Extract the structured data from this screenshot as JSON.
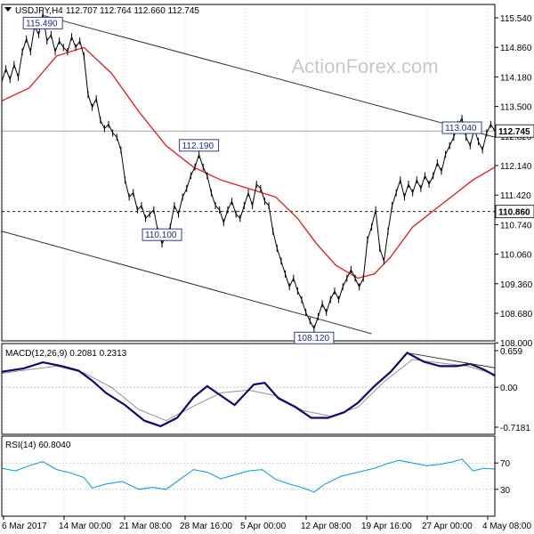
{
  "header": {
    "symbol": "USDJPY,H4",
    "ohlc": "112.707 112.764 112.660 112.745"
  },
  "watermark": "ActionForex.com",
  "colors": {
    "price": "#000000",
    "ma": "#e8191c",
    "macd": "#0a0a6e",
    "signal": "#909090",
    "rsi": "#0099dd",
    "trendline": "#333333",
    "grid": "#b0b0b0",
    "label_border": "#1a2a8a",
    "watermark": "#c8c8c8"
  },
  "chart_data": [
    {
      "type": "line",
      "title": "USDJPY,H4",
      "note": "price chart with moving average, channel lines and swing-point labels",
      "x_tick_labels": [
        "6 Mar 2017",
        "14 Mar 00:00",
        "21 Mar 08:00",
        "28 Mar 16:00",
        "5 Apr 00:00",
        "12 Apr 08:00",
        "19 Apr 16:00",
        "27 Apr 00:00",
        "4 May 08:00"
      ],
      "y_tick_labels": [
        "115.540",
        "114.860",
        "114.180",
        "113.500",
        "112.820",
        "112.140",
        "111.420",
        "110.740",
        "110.060",
        "109.360",
        "108.680",
        "108.000"
      ],
      "ylim": [
        108.0,
        115.54
      ],
      "price_series": [
        [
          0,
          113.9
        ],
        [
          1.5,
          114.2
        ],
        [
          3,
          113.95
        ],
        [
          4.5,
          114.3
        ],
        [
          6,
          114.0
        ],
        [
          7.5,
          114.6
        ],
        [
          9,
          114.9
        ],
        [
          10.5,
          114.6
        ],
        [
          12,
          115.2
        ],
        [
          13.5,
          115.0
        ],
        [
          15,
          115.49
        ],
        [
          16.5,
          114.85
        ],
        [
          18,
          115.0
        ],
        [
          19.5,
          114.6
        ],
        [
          21,
          114.85
        ],
        [
          22.5,
          114.7
        ],
        [
          24,
          114.6
        ],
        [
          25.5,
          114.95
        ],
        [
          27,
          114.7
        ],
        [
          28.5,
          114.85
        ],
        [
          30,
          114.5
        ],
        [
          31.5,
          113.6
        ],
        [
          33,
          113.3
        ],
        [
          34.5,
          113.5
        ],
        [
          36,
          113.0
        ],
        [
          37.5,
          112.8
        ],
        [
          39,
          112.9
        ],
        [
          40.5,
          112.7
        ],
        [
          42,
          112.6
        ],
        [
          43.5,
          112.3
        ],
        [
          45,
          111.6
        ],
        [
          46.5,
          111.2
        ],
        [
          48,
          111.3
        ],
        [
          49.5,
          110.9
        ],
        [
          51,
          111.0
        ],
        [
          52.5,
          110.7
        ],
        [
          54,
          110.8
        ],
        [
          55.5,
          110.9
        ],
        [
          57,
          110.4
        ],
        [
          58.5,
          110.1
        ],
        [
          60,
          110.3
        ],
        [
          61.5,
          110.5
        ],
        [
          63,
          111.0
        ],
        [
          64.5,
          110.8
        ],
        [
          66,
          111.2
        ],
        [
          67.5,
          111.4
        ],
        [
          69,
          111.7
        ],
        [
          70.5,
          111.9
        ],
        [
          72,
          112.19
        ],
        [
          73.5,
          111.9
        ],
        [
          75,
          111.7
        ],
        [
          76.5,
          111.3
        ],
        [
          78,
          111.0
        ],
        [
          79.5,
          110.9
        ],
        [
          81,
          110.6
        ],
        [
          82.5,
          110.9
        ],
        [
          84,
          111.1
        ],
        [
          85.5,
          110.8
        ],
        [
          87,
          110.7
        ],
        [
          88.5,
          111.0
        ],
        [
          90,
          111.3
        ],
        [
          91.5,
          111.0
        ],
        [
          93,
          111.5
        ],
        [
          94.5,
          111.4
        ],
        [
          96,
          111.1
        ],
        [
          97.5,
          111.0
        ],
        [
          99,
          110.4
        ],
        [
          100.5,
          110.0
        ],
        [
          102,
          109.7
        ],
        [
          103.5,
          109.4
        ],
        [
          105,
          109.1
        ],
        [
          106.5,
          109.3
        ],
        [
          108,
          109.0
        ],
        [
          109.5,
          108.8
        ],
        [
          111,
          108.5
        ],
        [
          112.5,
          108.3
        ],
        [
          114,
          108.12
        ],
        [
          115.5,
          108.4
        ],
        [
          117,
          108.7
        ],
        [
          118.5,
          108.5
        ],
        [
          120,
          108.8
        ],
        [
          121.5,
          109.0
        ],
        [
          123,
          108.8
        ],
        [
          124.5,
          109.1
        ],
        [
          126,
          109.3
        ],
        [
          127.5,
          109.5
        ],
        [
          129,
          109.3
        ],
        [
          130.5,
          109.1
        ],
        [
          132,
          109.3
        ],
        [
          133.5,
          110.2
        ],
        [
          135,
          110.5
        ],
        [
          136.5,
          110.9
        ],
        [
          138,
          110.0
        ],
        [
          139.5,
          109.7
        ],
        [
          141,
          110.4
        ],
        [
          142.5,
          111.0
        ],
        [
          144,
          111.3
        ],
        [
          145.5,
          111.6
        ],
        [
          147,
          111.2
        ],
        [
          148.5,
          111.5
        ],
        [
          150,
          111.3
        ],
        [
          151.5,
          111.6
        ],
        [
          153,
          111.4
        ],
        [
          154.5,
          111.7
        ],
        [
          156,
          111.5
        ],
        [
          157.5,
          111.7
        ],
        [
          159,
          112.0
        ],
        [
          160.5,
          111.8
        ],
        [
          162,
          112.2
        ],
        [
          163.5,
          112.4
        ],
        [
          165,
          112.6
        ],
        [
          166.5,
          112.9
        ],
        [
          168,
          113.04
        ],
        [
          169.5,
          112.6
        ],
        [
          171,
          112.4
        ],
        [
          172.5,
          112.8
        ],
        [
          174,
          112.5
        ],
        [
          175.5,
          112.3
        ],
        [
          177,
          112.7
        ],
        [
          178.5,
          112.9
        ],
        [
          180,
          112.745
        ]
      ],
      "moving_average": [
        [
          0,
          113.45
        ],
        [
          10,
          113.75
        ],
        [
          20,
          114.5
        ],
        [
          30,
          114.7
        ],
        [
          40,
          114.1
        ],
        [
          50,
          113.2
        ],
        [
          60,
          112.4
        ],
        [
          70,
          111.9
        ],
        [
          80,
          111.6
        ],
        [
          90,
          111.4
        ],
        [
          100,
          111.2
        ],
        [
          108,
          110.7
        ],
        [
          115,
          110.1
        ],
        [
          122,
          109.6
        ],
        [
          130,
          109.3
        ],
        [
          136,
          109.4
        ],
        [
          142,
          109.8
        ],
        [
          150,
          110.5
        ],
        [
          158,
          110.9
        ],
        [
          166,
          111.3
        ],
        [
          172,
          111.6
        ],
        [
          180,
          111.9
        ]
      ],
      "current_level": 112.745,
      "current_level_label": "112.745",
      "support_level": 110.86,
      "support_level_label": "110.860",
      "trendlines": [
        {
          "from": [
            15,
            115.45
          ],
          "to": [
            180,
            112.6
          ]
        },
        {
          "from": [
            0,
            110.4
          ],
          "to": [
            135,
            108.0
          ]
        }
      ],
      "annotations": [
        {
          "text": "115.490",
          "x": 15,
          "y": 115.49
        },
        {
          "text": "112.190",
          "x": 72,
          "y": 112.19
        },
        {
          "text": "110.100",
          "x": 58.5,
          "y": 110.1
        },
        {
          "text": "108.120",
          "x": 114,
          "y": 108.12
        },
        {
          "text": "113.040",
          "x": 168,
          "y": 113.04
        }
      ]
    },
    {
      "type": "line",
      "title": "MACD(12,26,9) 0.2081 0.2313",
      "y_tick_labels": [
        "0.659",
        "0.00",
        "-0.7181"
      ],
      "ylim": [
        -0.7181,
        0.659
      ],
      "macd": [
        [
          0,
          0.28
        ],
        [
          8,
          0.34
        ],
        [
          15,
          0.45
        ],
        [
          22,
          0.38
        ],
        [
          28,
          0.3
        ],
        [
          33,
          0.12
        ],
        [
          38,
          -0.1
        ],
        [
          45,
          -0.32
        ],
        [
          52,
          -0.6
        ],
        [
          58,
          -0.7
        ],
        [
          64,
          -0.55
        ],
        [
          70,
          -0.18
        ],
        [
          75,
          0.02
        ],
        [
          80,
          -0.15
        ],
        [
          85,
          -0.32
        ],
        [
          92,
          0.05
        ],
        [
          96,
          0.08
        ],
        [
          101,
          -0.2
        ],
        [
          107,
          -0.35
        ],
        [
          113,
          -0.55
        ],
        [
          119,
          -0.55
        ],
        [
          125,
          -0.45
        ],
        [
          130,
          -0.28
        ],
        [
          136,
          0.02
        ],
        [
          142,
          0.28
        ],
        [
          148,
          0.62
        ],
        [
          154,
          0.46
        ],
        [
          160,
          0.38
        ],
        [
          166,
          0.38
        ],
        [
          171,
          0.42
        ],
        [
          176,
          0.32
        ],
        [
          180,
          0.21
        ]
      ],
      "signal": [
        [
          0,
          0.25
        ],
        [
          10,
          0.32
        ],
        [
          20,
          0.38
        ],
        [
          30,
          0.26
        ],
        [
          40,
          0.0
        ],
        [
          50,
          -0.4
        ],
        [
          60,
          -0.6
        ],
        [
          70,
          -0.34
        ],
        [
          80,
          -0.1
        ],
        [
          90,
          -0.05
        ],
        [
          100,
          -0.15
        ],
        [
          110,
          -0.42
        ],
        [
          120,
          -0.52
        ],
        [
          130,
          -0.36
        ],
        [
          140,
          0.12
        ],
        [
          150,
          0.5
        ],
        [
          160,
          0.44
        ],
        [
          170,
          0.38
        ],
        [
          180,
          0.23
        ]
      ],
      "trendline": {
        "from": [
          148,
          0.62
        ],
        "to": [
          180,
          0.35
        ]
      }
    },
    {
      "type": "line",
      "title": "RSI(14) 60.8040",
      "y_tick_labels": [
        "70",
        "30"
      ],
      "levels": [
        70,
        30
      ],
      "ylim": [
        0,
        100
      ],
      "rsi": [
        [
          0,
          62
        ],
        [
          5,
          58
        ],
        [
          10,
          66
        ],
        [
          15,
          72
        ],
        [
          20,
          60
        ],
        [
          25,
          55
        ],
        [
          30,
          48
        ],
        [
          33,
          32
        ],
        [
          38,
          38
        ],
        [
          44,
          42
        ],
        [
          50,
          30
        ],
        [
          55,
          33
        ],
        [
          60,
          30
        ],
        [
          65,
          45
        ],
        [
          70,
          60
        ],
        [
          75,
          56
        ],
        [
          80,
          46
        ],
        [
          85,
          52
        ],
        [
          90,
          58
        ],
        [
          95,
          60
        ],
        [
          100,
          45
        ],
        [
          105,
          38
        ],
        [
          110,
          32
        ],
        [
          114,
          26
        ],
        [
          118,
          38
        ],
        [
          124,
          50
        ],
        [
          130,
          56
        ],
        [
          136,
          62
        ],
        [
          140,
          68
        ],
        [
          145,
          74
        ],
        [
          150,
          70
        ],
        [
          155,
          66
        ],
        [
          160,
          68
        ],
        [
          165,
          72
        ],
        [
          168,
          76
        ],
        [
          172,
          58
        ],
        [
          176,
          62
        ],
        [
          180,
          60.8
        ]
      ]
    }
  ]
}
